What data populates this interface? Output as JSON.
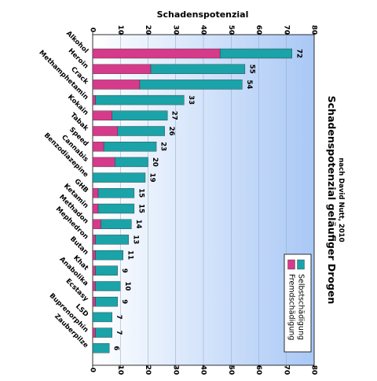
{
  "chart_data": {
    "type": "bar",
    "orientation": "horizontal",
    "stacked": true,
    "title": "Schadenspotenzial geläufiger Drogen",
    "subtitle": "nach David Nutt, 2010",
    "xlabel": "Schadenspotenzial",
    "xlim": [
      0,
      80
    ],
    "x_ticks": [
      "0",
      "10",
      "20",
      "30",
      "40",
      "50",
      "60",
      "70",
      "80"
    ],
    "grid": "vertical",
    "legend_position": "bottom-right",
    "categories": [
      "Alkohol",
      "Heroin",
      "Crack",
      "Methamphetamin",
      "Kokain",
      "Tabak",
      "Speed",
      "Cannabis",
      "Benzodiazepine",
      "GHB",
      "Ketamin",
      "Methadon",
      "Mephedron",
      "Butan",
      "Khat",
      "Anabolika",
      "Ecstasy",
      "LSD",
      "Buprenorphin",
      "Zauberpilze"
    ],
    "totals": [
      72,
      55,
      54,
      33,
      27,
      26,
      23,
      20,
      19,
      15,
      15,
      14,
      13,
      11,
      9,
      10,
      9,
      7,
      7,
      6
    ],
    "series": [
      {
        "name": "Fremdschädigung",
        "color": "#d63a8a",
        "values": [
          46,
          21,
          17,
          1,
          7,
          9,
          4,
          8,
          0,
          2,
          2,
          3,
          1,
          1,
          1,
          1,
          1,
          0,
          1,
          0
        ]
      },
      {
        "name": "Selbstschädigung",
        "color": "#1aa3a8",
        "values": [
          26,
          34,
          37,
          32,
          20,
          17,
          19,
          12,
          19,
          13,
          13,
          11,
          12,
          10,
          8,
          9,
          8,
          7,
          6,
          6
        ]
      }
    ],
    "legend": [
      {
        "name": "Selbstschädigung",
        "color": "#1aa3a8"
      },
      {
        "name": "Fremdschädigung",
        "color": "#d63a8a"
      }
    ]
  }
}
